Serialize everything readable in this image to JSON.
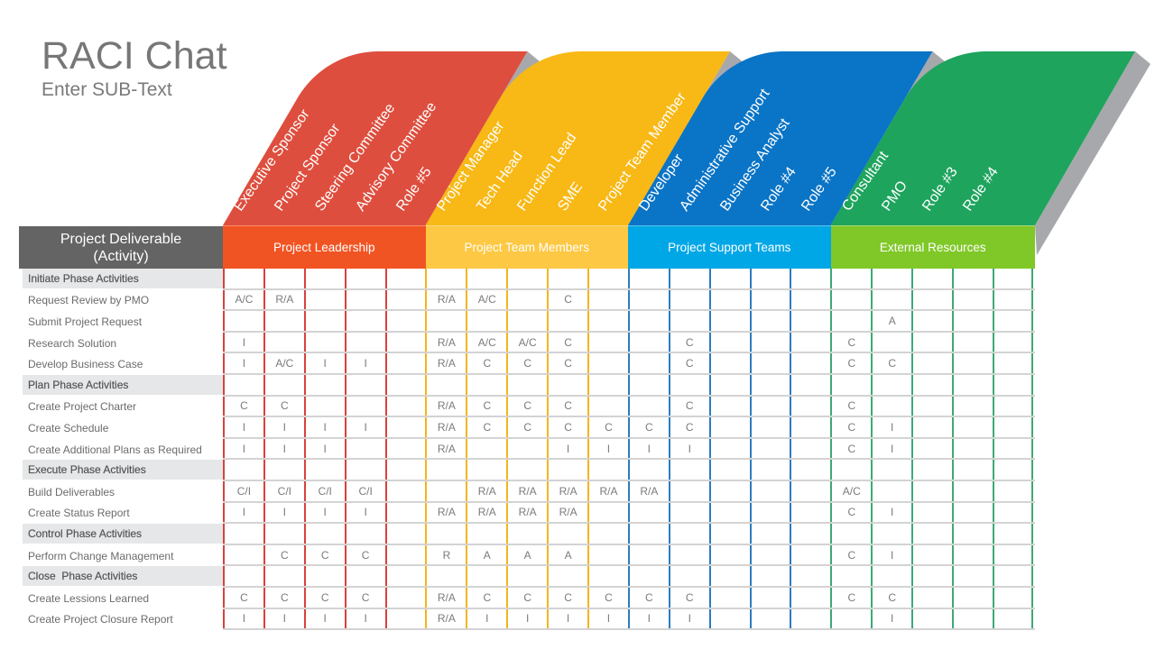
{
  "colors": {
    "background": "#ffffff",
    "shadow": "#a7a8ab",
    "header_bg": "#646464",
    "phase_bg": "#e6e7e8",
    "grid_line": "#d3d3d3",
    "title": "#777777"
  },
  "chart_data": {
    "type": "table",
    "title": "RACI Chat",
    "subtitle": "Enter SUB-Text",
    "row_header": [
      "Project Deliverable",
      "(Activity)"
    ],
    "column_groups": [
      {
        "name": "Project Leadership",
        "shape_color": "#de4e3e",
        "band_color": "#f15423",
        "line_color": "#d8413c",
        "roles": [
          "Executive Sponsor",
          "Project Sponsor",
          "Steering Committee",
          "Advisory Committee",
          "Role #5"
        ]
      },
      {
        "name": "Project Team Members",
        "shape_color": "#f8b815",
        "band_color": "#fdc843",
        "line_color": "#f4b51c",
        "roles": [
          "Project Manager",
          "Tech Head",
          "Function Lead",
          "SME",
          "Project Team Member"
        ]
      },
      {
        "name": "Project Support Teams",
        "shape_color": "#0a74c6",
        "band_color": "#00a7e6",
        "line_color": "#2c7cc0",
        "roles": [
          "Developer",
          "Administrative Support",
          "Business Analyst",
          "Role #4",
          "Role #5"
        ]
      },
      {
        "name": "External Resources",
        "shape_color": "#1ea45d",
        "band_color": "#80c828",
        "line_color": "#3ea877",
        "roles": [
          "Consultant",
          "PMO",
          "Role #3",
          "Role #4",
          ""
        ]
      }
    ],
    "rows": [
      {
        "type": "phase",
        "label": "Initiate Phase Activities",
        "values": [
          "",
          "",
          "",
          "",
          "",
          "",
          "",
          "",
          "",
          "",
          "",
          "",
          "",
          "",
          "",
          "",
          "",
          "",
          "",
          ""
        ]
      },
      {
        "type": "activity",
        "label": "Request Review by PMO",
        "values": [
          "A/C",
          "R/A",
          "",
          "",
          "",
          "R/A",
          "A/C",
          "",
          "C",
          "",
          "",
          "",
          "",
          "",
          "",
          "",
          "",
          "",
          "",
          ""
        ]
      },
      {
        "type": "activity",
        "label": "Submit Project Request",
        "values": [
          "",
          "",
          "",
          "",
          "",
          "",
          "",
          "",
          "",
          "",
          "",
          "",
          "",
          "",
          "",
          "",
          "A",
          "",
          "",
          ""
        ]
      },
      {
        "type": "activity",
        "label": "Research Solution",
        "values": [
          "I",
          "",
          "",
          "",
          "",
          "R/A",
          "A/C",
          "A/C",
          "C",
          "",
          "",
          "C",
          "",
          "",
          "",
          "C",
          "",
          "",
          "",
          ""
        ]
      },
      {
        "type": "activity",
        "label": "Develop Business Case",
        "values": [
          "I",
          "A/C",
          "I",
          "I",
          "",
          "R/A",
          "C",
          "C",
          "C",
          "",
          "",
          "C",
          "",
          "",
          "",
          "C",
          "C",
          "",
          "",
          ""
        ]
      },
      {
        "type": "phase",
        "label": "Plan Phase Activities",
        "values": [
          "",
          "",
          "",
          "",
          "",
          "",
          "",
          "",
          "",
          "",
          "",
          "",
          "",
          "",
          "",
          "",
          "",
          "",
          "",
          ""
        ]
      },
      {
        "type": "activity",
        "label": "Create Project Charter",
        "values": [
          "C",
          "C",
          "",
          "",
          "",
          "R/A",
          "C",
          "C",
          "C",
          "",
          "",
          "C",
          "",
          "",
          "",
          "C",
          "",
          "",
          "",
          ""
        ]
      },
      {
        "type": "activity",
        "label": "Create Schedule",
        "values": [
          "I",
          "I",
          "I",
          "I",
          "",
          "R/A",
          "C",
          "C",
          "C",
          "C",
          "C",
          "C",
          "",
          "",
          "",
          "C",
          "I",
          "",
          "",
          ""
        ]
      },
      {
        "type": "activity",
        "label": "Create Additional Plans as Required",
        "values": [
          "I",
          "I",
          "I",
          "",
          "",
          "R/A",
          "",
          "",
          "I",
          "I",
          "I",
          "I",
          "",
          "",
          "",
          "C",
          "I",
          "",
          "",
          ""
        ]
      },
      {
        "type": "phase",
        "label": "Execute Phase Activities",
        "values": [
          "",
          "",
          "",
          "",
          "",
          "",
          "",
          "",
          "",
          "",
          "",
          "",
          "",
          "",
          "",
          "",
          "",
          "",
          "",
          ""
        ]
      },
      {
        "type": "activity",
        "label": "Build Deliverables",
        "values": [
          "C/I",
          "C/I",
          "C/I",
          "C/I",
          "",
          "",
          "R/A",
          "R/A",
          "R/A",
          "R/A",
          "R/A",
          "",
          "",
          "",
          "",
          "A/C",
          "",
          "",
          "",
          ""
        ]
      },
      {
        "type": "activity",
        "label": "Create Status Report",
        "values": [
          "I",
          "I",
          "I",
          "I",
          "",
          "R/A",
          "R/A",
          "R/A",
          "R/A",
          "",
          "",
          "",
          "",
          "",
          "",
          "C",
          "I",
          "",
          "",
          ""
        ]
      },
      {
        "type": "phase",
        "label": "Control Phase Activities",
        "values": [
          "",
          "",
          "",
          "",
          "",
          "",
          "",
          "",
          "",
          "",
          "",
          "",
          "",
          "",
          "",
          "",
          "",
          "",
          "",
          ""
        ]
      },
      {
        "type": "activity",
        "label": "Perform Change Management",
        "values": [
          "",
          "C",
          "C",
          "C",
          "",
          "R",
          "A",
          "A",
          "A",
          "",
          "",
          "",
          "",
          "",
          "",
          "C",
          "I",
          "",
          "",
          ""
        ]
      },
      {
        "type": "phase",
        "label": "Close  Phase Activities",
        "values": [
          "",
          "",
          "",
          "",
          "",
          "",
          "",
          "",
          "",
          "",
          "",
          "",
          "",
          "",
          "",
          "",
          "",
          "",
          "",
          ""
        ]
      },
      {
        "type": "activity",
        "label": "Create Lessions Learned",
        "values": [
          "C",
          "C",
          "C",
          "C",
          "",
          "R/A",
          "C",
          "C",
          "C",
          "C",
          "C",
          "C",
          "",
          "",
          "",
          "C",
          "C",
          "",
          "",
          ""
        ]
      },
      {
        "type": "activity",
        "label": "Create Project Closure Report",
        "values": [
          "I",
          "I",
          "I",
          "I",
          "",
          "R/A",
          "I",
          "I",
          "I",
          "I",
          "I",
          "I",
          "",
          "",
          "",
          "",
          "I",
          "",
          "",
          ""
        ]
      }
    ]
  }
}
